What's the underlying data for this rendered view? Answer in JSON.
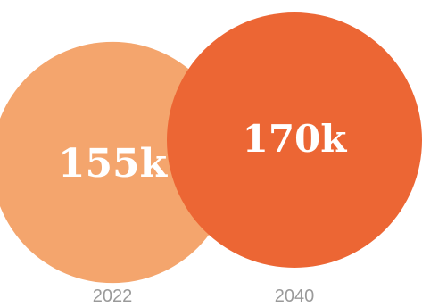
{
  "chart_data": {
    "type": "bubble",
    "categories": [
      "2022",
      "2040"
    ],
    "values": [
      155000,
      170000
    ],
    "data_labels": [
      "155k",
      "170k"
    ],
    "colors": [
      "#F4A56D",
      "#EC6634"
    ],
    "label_color": "#9A9A9A",
    "value_text_color": "#FFFFFF"
  }
}
